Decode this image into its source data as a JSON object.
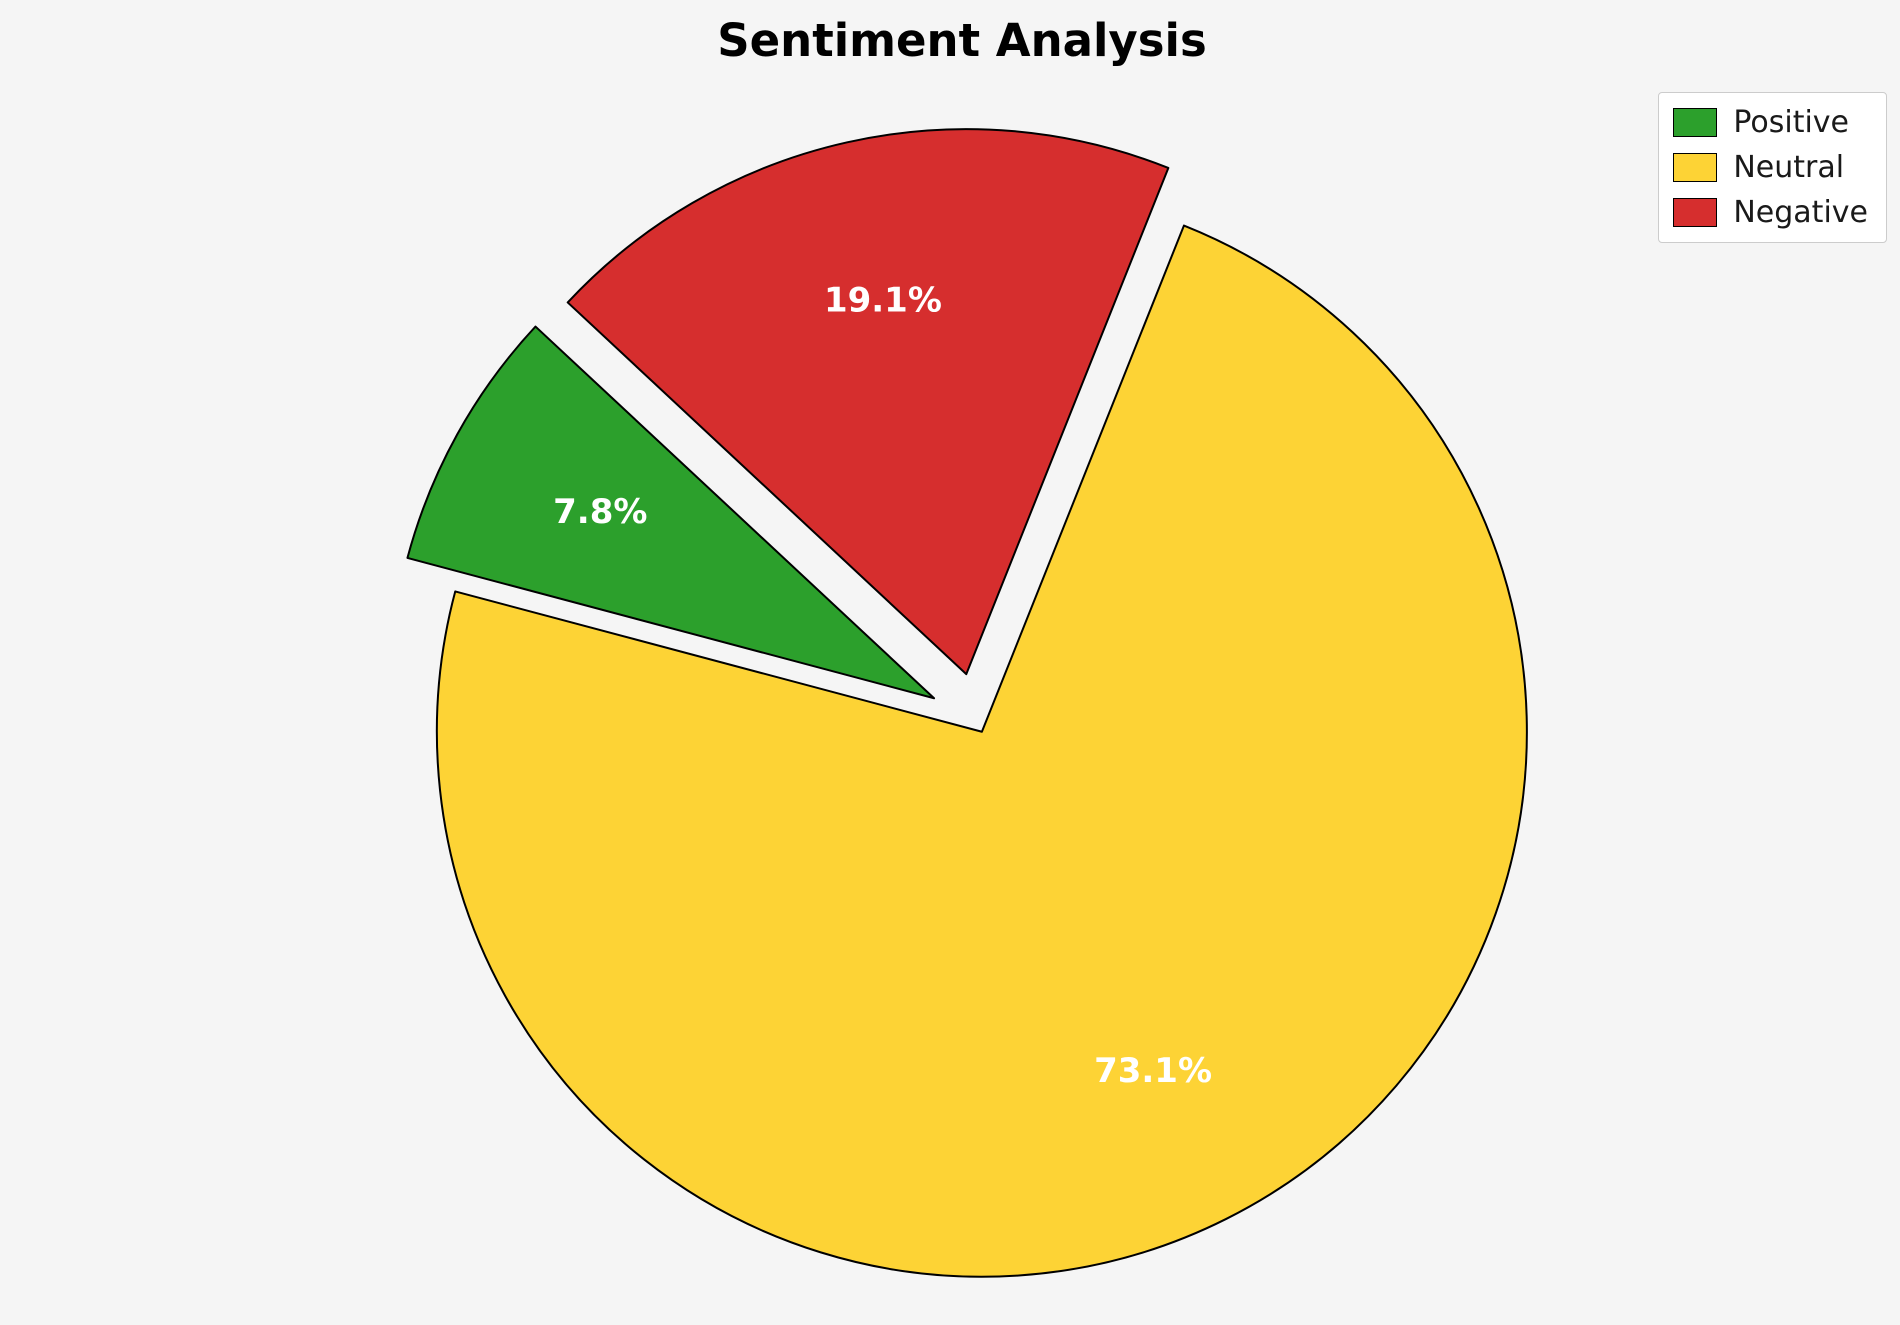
{
  "title": "Sentiment Analysis",
  "background_color": "#f5f5f5",
  "chart_data": {
    "type": "pie",
    "title": "Sentiment Analysis",
    "labels": [
      "Positive",
      "Neutral",
      "Negative"
    ],
    "values": [
      7.8,
      73.1,
      19.1
    ],
    "percent_labels": [
      "7.8%",
      "73.1%",
      "19.1%"
    ],
    "colors": [
      "#2ca02c",
      "#fdd335",
      "#d62e2e"
    ],
    "edge_color": "#000000",
    "edge_width": 2,
    "label_color": "#ffffff",
    "start_angle": 137,
    "counterclockwise": true,
    "explode": [
      0.09,
      0.02,
      0.09
    ],
    "pct_distance": 0.7,
    "center": [
      977,
      722
    ],
    "radius": 545,
    "legend_position": "upper right",
    "legend_items": [
      {
        "label": "Positive",
        "color": "#2ca02c"
      },
      {
        "label": "Neutral",
        "color": "#fdd335"
      },
      {
        "label": "Negative",
        "color": "#d62e2e"
      }
    ]
  }
}
